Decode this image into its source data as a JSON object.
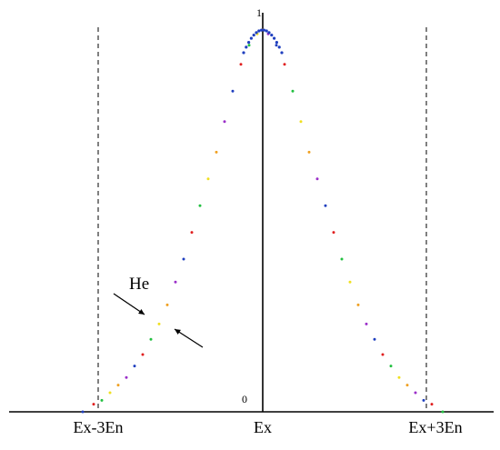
{
  "chart_data": {
    "type": "scatter",
    "title": "",
    "xlabel": "",
    "ylabel": "",
    "x_ticks": [
      "Ex-3En",
      "Ex",
      "Ex+3En"
    ],
    "y_ticks": [
      "0",
      "1"
    ],
    "annotation": "He",
    "xlim": [
      -3.5,
      3.5
    ],
    "ylim": [
      0,
      1
    ],
    "grid": false,
    "point_colors": [
      "#1f3fbf",
      "#e02020",
      "#22c040",
      "#f0e020",
      "#f0a020",
      "#9b2fc9"
    ],
    "expected_curve": "exp(-x^2/2)",
    "series": [
      {
        "values": [
          {
            "x": -3.3,
            "y": 0.0
          },
          {
            "x": -3.1,
            "y": 0.02
          },
          {
            "x": -2.95,
            "y": 0.03
          },
          {
            "x": -2.8,
            "y": 0.05
          },
          {
            "x": -2.65,
            "y": 0.07
          },
          {
            "x": -2.5,
            "y": 0.09
          },
          {
            "x": -2.35,
            "y": 0.12
          },
          {
            "x": -2.2,
            "y": 0.15
          },
          {
            "x": -2.05,
            "y": 0.19
          },
          {
            "x": -1.9,
            "y": 0.23
          },
          {
            "x": -1.75,
            "y": 0.28
          },
          {
            "x": -1.6,
            "y": 0.34
          },
          {
            "x": -1.45,
            "y": 0.4
          },
          {
            "x": -1.3,
            "y": 0.47
          },
          {
            "x": -1.15,
            "y": 0.54
          },
          {
            "x": -1.0,
            "y": 0.61
          },
          {
            "x": -0.85,
            "y": 0.68
          },
          {
            "x": -0.7,
            "y": 0.76
          },
          {
            "x": -0.55,
            "y": 0.84
          },
          {
            "x": -0.4,
            "y": 0.91
          },
          {
            "x": -0.25,
            "y": 0.96
          },
          {
            "x": -0.1,
            "y": 0.99
          },
          {
            "x": 0.0,
            "y": 1.0
          },
          {
            "x": 0.1,
            "y": 0.99
          },
          {
            "x": 0.25,
            "y": 0.96
          },
          {
            "x": 0.4,
            "y": 0.91
          },
          {
            "x": 0.55,
            "y": 0.84
          },
          {
            "x": 0.7,
            "y": 0.76
          },
          {
            "x": 0.85,
            "y": 0.68
          },
          {
            "x": 1.0,
            "y": 0.61
          },
          {
            "x": 1.15,
            "y": 0.54
          },
          {
            "x": 1.3,
            "y": 0.47
          },
          {
            "x": 1.45,
            "y": 0.4
          },
          {
            "x": 1.6,
            "y": 0.34
          },
          {
            "x": 1.75,
            "y": 0.28
          },
          {
            "x": 1.9,
            "y": 0.23
          },
          {
            "x": 2.05,
            "y": 0.19
          },
          {
            "x": 2.2,
            "y": 0.15
          },
          {
            "x": 2.35,
            "y": 0.12
          },
          {
            "x": 2.5,
            "y": 0.09
          },
          {
            "x": 2.65,
            "y": 0.07
          },
          {
            "x": 2.8,
            "y": 0.05
          },
          {
            "x": 2.95,
            "y": 0.03
          },
          {
            "x": 3.1,
            "y": 0.02
          },
          {
            "x": 3.3,
            "y": 0.0
          }
        ]
      }
    ]
  }
}
